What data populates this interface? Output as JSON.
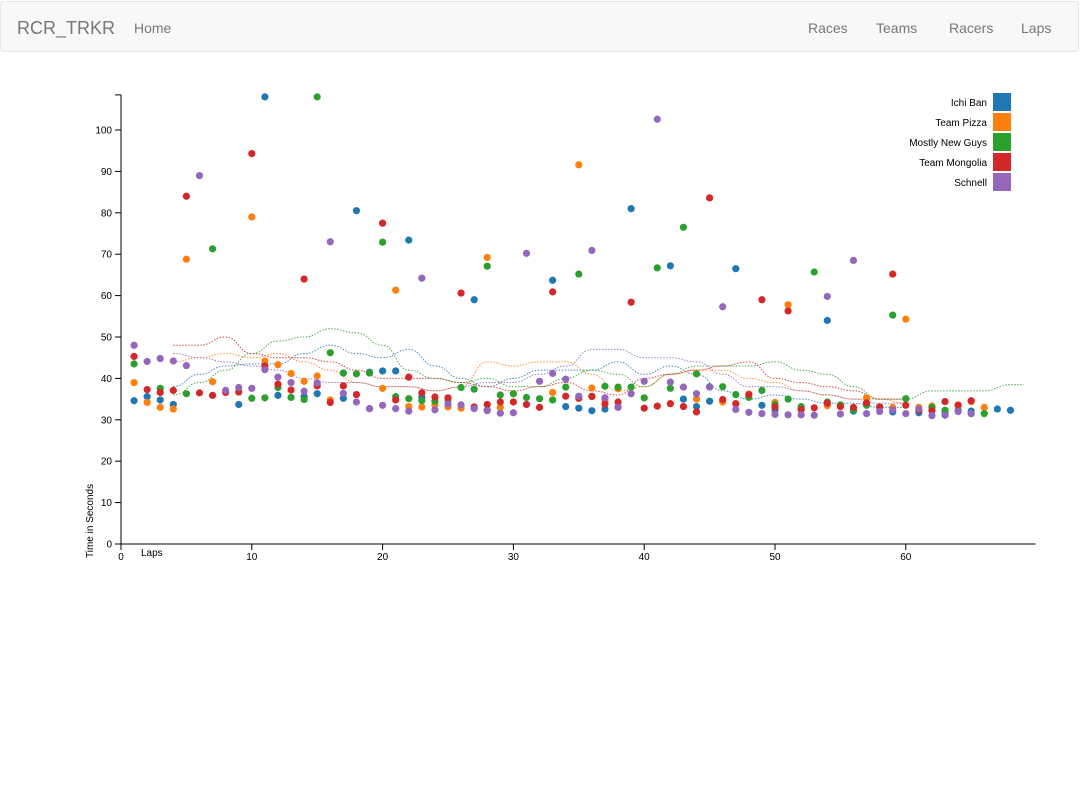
{
  "nav": {
    "brand": "RCR_TRKR",
    "home": "Home",
    "races": "Races",
    "teams": "Teams",
    "racers": "Racers",
    "laps": "Laps"
  },
  "chart_data": {
    "type": "scatter",
    "title": "",
    "xlabel": "Laps",
    "ylabel": "Time in Seconds",
    "xlim": [
      0,
      69
    ],
    "ylim": [
      0,
      108
    ],
    "xticks": [
      0,
      10,
      20,
      30,
      40,
      50,
      60
    ],
    "yticks": [
      0,
      10,
      20,
      30,
      40,
      50,
      60,
      70,
      80,
      90,
      100
    ],
    "legend_position": "top-right",
    "grid": false,
    "series": [
      {
        "name": "Ichi Ban",
        "color": "#1f77b4",
        "x": [
          1,
          2,
          3,
          4,
          9,
          11,
          12,
          14,
          15,
          17,
          18,
          19,
          20,
          21,
          22,
          23,
          27,
          28,
          33,
          34,
          35,
          36,
          37,
          38,
          39,
          42,
          43,
          44,
          45,
          47,
          49,
          50,
          54,
          56,
          58,
          59,
          61,
          63,
          65,
          67,
          68
        ],
        "y": [
          34.6,
          35.6,
          34.8,
          33.7,
          33.7,
          108,
          35.9,
          35.6,
          36.3,
          35.2,
          80.5,
          41.5,
          41.8,
          41.8,
          73.4,
          35.4,
          59,
          32.4,
          63.7,
          33.2,
          32.8,
          32.2,
          32.6,
          33.1,
          81,
          67.2,
          35,
          33.2,
          34.5,
          66.5,
          33.5,
          32.4,
          54,
          32.1,
          33.1,
          31.9,
          31.7,
          31.7,
          32.1,
          32.6,
          32.3
        ],
        "trend_x": [
          4,
          6,
          8,
          10,
          12,
          14,
          16,
          18,
          20,
          22,
          24,
          26,
          28,
          30,
          32,
          34,
          36,
          38,
          40,
          42,
          44,
          46,
          48,
          50,
          52,
          54,
          56,
          58,
          60
        ],
        "trend_y": [
          38,
          41,
          43,
          43.5,
          43.5,
          46,
          48,
          46,
          45,
          47,
          43,
          40,
          38,
          40,
          42,
          42,
          42,
          44,
          41,
          43,
          41,
          37,
          35,
          36,
          35,
          34,
          34,
          33,
          33
        ]
      },
      {
        "name": "Team Pizza",
        "color": "#ff7f0e",
        "x": [
          1,
          2,
          3,
          4,
          5,
          7,
          10,
          11,
          12,
          13,
          14,
          15,
          16,
          20,
          21,
          22,
          23,
          24,
          25,
          26,
          28,
          29,
          33,
          35,
          36,
          37,
          38,
          44,
          46,
          48,
          50,
          51,
          52,
          54,
          57,
          59,
          60,
          61,
          62,
          64,
          65,
          66
        ],
        "y": [
          39,
          34.2,
          33,
          32.6,
          68.8,
          39.2,
          79,
          44.2,
          43.3,
          41.2,
          39.3,
          40.6,
          34.8,
          37.6,
          61.3,
          33.2,
          33.1,
          33.6,
          33.1,
          32.8,
          69.2,
          33,
          36.6,
          91.6,
          37.7,
          34.6,
          37.5,
          35,
          34.3,
          36.2,
          34.2,
          57.8,
          32.4,
          33.4,
          35.3,
          33,
          54.3,
          33,
          33.3,
          33.6,
          34.4,
          33
        ],
        "trend_x": [
          4,
          6,
          8,
          10,
          12,
          14,
          16,
          18,
          20,
          22,
          24,
          26,
          28,
          30,
          32,
          34,
          36,
          38,
          40,
          42,
          44,
          46,
          48,
          50,
          52,
          54,
          56,
          58,
          60
        ],
        "trend_y": [
          44,
          45,
          46,
          45,
          46,
          44,
          42,
          39,
          38,
          38,
          37,
          38,
          44,
          43,
          44,
          44,
          41,
          37,
          38,
          41,
          42,
          42,
          40,
          39,
          37,
          36,
          35,
          35,
          34
        ]
      },
      {
        "name": "Mostly New Guys",
        "color": "#2ca02c",
        "x": [
          1,
          3,
          5,
          7,
          10,
          11,
          12,
          13,
          14,
          15,
          16,
          17,
          18,
          19,
          20,
          21,
          22,
          23,
          24,
          25,
          26,
          27,
          28,
          29,
          30,
          31,
          32,
          33,
          34,
          35,
          36,
          37,
          38,
          39,
          40,
          41,
          42,
          43,
          44,
          45,
          46,
          47,
          48,
          49,
          50,
          51,
          52,
          53,
          54,
          55,
          56,
          57,
          59,
          60,
          62,
          63,
          64,
          65,
          66
        ],
        "y": [
          43.5,
          37.6,
          36.3,
          71.3,
          35.2,
          35.3,
          37.8,
          35.4,
          34.9,
          108,
          46.2,
          41.3,
          41.1,
          41.3,
          72.9,
          35.6,
          35.1,
          34.6,
          34.5,
          34.8,
          37.8,
          37.4,
          67.1,
          36,
          36.3,
          35.4,
          35.1,
          34.8,
          37.9,
          65.2,
          35.7,
          38.1,
          37.9,
          37.9,
          35.3,
          66.7,
          37.6,
          76.5,
          41.1,
          38,
          38,
          36.1,
          35.4,
          37.1,
          33.7,
          35,
          33.2,
          65.7,
          34.3,
          33.6,
          32.4,
          33.5,
          55.3,
          35.1,
          33,
          32.3,
          32.3,
          31.5,
          31.5
        ],
        "trend_x": [
          4,
          6,
          8,
          10,
          12,
          14,
          16,
          18,
          20,
          22,
          24,
          26,
          28,
          30,
          32,
          34,
          36,
          38,
          40,
          42,
          44,
          46,
          48,
          50,
          52,
          54,
          56,
          58,
          60,
          62,
          64,
          66,
          68,
          69
        ],
        "trend_y": [
          36,
          39,
          42,
          46,
          49,
          50,
          52,
          51,
          48,
          42,
          40,
          39,
          40,
          38,
          38,
          40,
          42,
          41,
          38,
          41,
          43,
          43,
          43,
          44,
          42,
          41,
          38,
          35,
          35,
          37,
          37,
          37,
          38.5,
          38.5
        ]
      },
      {
        "name": "Team Mongolia",
        "color": "#d62728",
        "x": [
          1,
          2,
          3,
          4,
          5,
          6,
          7,
          8,
          9,
          10,
          11,
          12,
          13,
          14,
          15,
          16,
          17,
          18,
          19,
          20,
          21,
          22,
          23,
          24,
          25,
          26,
          27,
          28,
          29,
          30,
          31,
          32,
          33,
          34,
          35,
          36,
          37,
          38,
          39,
          40,
          41,
          42,
          43,
          44,
          45,
          46,
          47,
          48,
          49,
          50,
          51,
          52,
          53,
          54,
          55,
          56,
          57,
          58,
          59,
          60,
          61,
          62,
          63,
          64,
          65
        ],
        "y": [
          45.3,
          37.3,
          36.6,
          37.1,
          84,
          36.5,
          35.9,
          36.6,
          36.7,
          94.3,
          43,
          38.6,
          37.2,
          64,
          38.2,
          34.2,
          38.2,
          36.1,
          32.7,
          77.5,
          34.8,
          40.3,
          36.5,
          35.5,
          35.3,
          60.6,
          33.1,
          33.7,
          34.3,
          34.3,
          33.7,
          33,
          60.9,
          35.7,
          35.2,
          35.6,
          33.8,
          34.3,
          58.4,
          32.8,
          33.3,
          33.9,
          33.2,
          31.9,
          83.6,
          34.9,
          33.9,
          36.1,
          59,
          33.1,
          56.3,
          32.5,
          32.9,
          34,
          33.2,
          33,
          34.1,
          33.1,
          65.2,
          33.5,
          32.3,
          32.2,
          34.4,
          33.5,
          34.6
        ],
        "trend_x": [
          4,
          6,
          8,
          10,
          12,
          14,
          16,
          18,
          20,
          22,
          24,
          26,
          28,
          30,
          32,
          34,
          36,
          38,
          40,
          42,
          44,
          46,
          48,
          50,
          52,
          54,
          56,
          58,
          60
        ],
        "trend_y": [
          48,
          48,
          50,
          46,
          45,
          45,
          44,
          42,
          40,
          40,
          40,
          39,
          38,
          37,
          38,
          39,
          37,
          36,
          40,
          41,
          42,
          43,
          44,
          40,
          39,
          38,
          37,
          35,
          35
        ]
      },
      {
        "name": "Schnell",
        "color": "#9467bd",
        "x": [
          1,
          2,
          3,
          4,
          5,
          6,
          8,
          9,
          10,
          11,
          12,
          13,
          14,
          15,
          16,
          17,
          18,
          19,
          20,
          21,
          22,
          23,
          24,
          25,
          26,
          27,
          28,
          29,
          30,
          31,
          32,
          33,
          34,
          35,
          36,
          37,
          38,
          39,
          40,
          41,
          42,
          43,
          44,
          45,
          46,
          47,
          48,
          49,
          50,
          51,
          52,
          53,
          54,
          55,
          56,
          57,
          58,
          59,
          60,
          61,
          62,
          63,
          64,
          65
        ],
        "y": [
          48,
          44.1,
          44.8,
          44.2,
          43.1,
          89,
          37.1,
          37.8,
          37.6,
          42.1,
          40.3,
          39,
          36.9,
          38.9,
          73,
          36.4,
          34.3,
          32.7,
          33.5,
          32.7,
          32.1,
          64.2,
          32.4,
          33.8,
          33.6,
          32.7,
          32.2,
          31.6,
          31.7,
          70.2,
          39.3,
          41.2,
          39.8,
          35.7,
          70.9,
          35.3,
          33,
          36.3,
          39.3,
          102.6,
          39.1,
          37.9,
          36.3,
          37.9,
          57.3,
          32.5,
          31.8,
          31.5,
          31.3,
          31.2,
          31.2,
          31.1,
          59.8,
          31.4,
          68.5,
          31.5,
          32,
          32.4,
          31.5,
          32.6,
          31,
          31.1,
          32,
          31.5
        ],
        "trend_x": [
          4,
          6,
          8,
          10,
          12,
          14,
          16,
          18,
          20,
          22,
          24,
          26,
          28,
          30,
          32,
          34,
          36,
          38,
          40,
          42,
          44,
          46,
          48,
          50,
          52,
          54,
          56,
          58,
          60
        ],
        "trend_y": [
          46,
          45,
          44,
          43,
          42,
          40,
          39,
          39,
          38,
          38,
          37,
          38,
          39,
          39,
          41,
          43,
          47,
          47,
          45,
          45,
          44,
          41,
          38,
          38,
          37,
          36,
          35,
          34,
          34
        ]
      }
    ]
  }
}
